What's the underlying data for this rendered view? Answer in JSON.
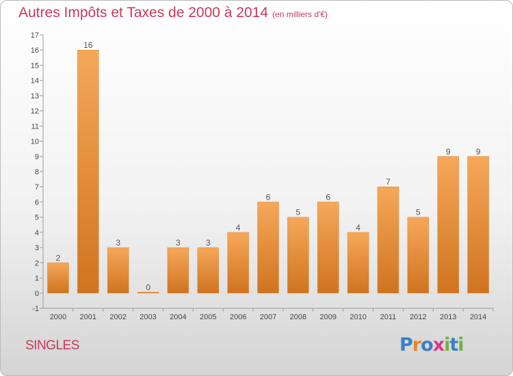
{
  "header": {
    "title": "Autres Impôts et Taxes de 2000 à 2014",
    "unit": "(en milliers d'€)"
  },
  "footer": {
    "commune": "SINGLES",
    "logo_letters": [
      "P",
      "r",
      "o",
      "x",
      "i",
      "t",
      "i"
    ]
  },
  "colors": {
    "title": "#c8385a",
    "bar_light": "#f6a85a",
    "bar_dark": "#cf7420",
    "logo": [
      "#3b7fc4",
      "#e8862a",
      "#3b7fc4",
      "#d63a8c",
      "#6fb43f",
      "#3b7fc4",
      "#6fb43f"
    ]
  },
  "chart_data": {
    "type": "bar",
    "title": "Autres Impôts et Taxes de 2000 à 2014",
    "subtitle": "(en milliers d'€)",
    "categories": [
      "2000",
      "2001",
      "2002",
      "2003",
      "2004",
      "2005",
      "2006",
      "2007",
      "2008",
      "2009",
      "2010",
      "2011",
      "2012",
      "2013",
      "2014"
    ],
    "values": [
      2,
      16,
      3,
      0,
      3,
      3,
      4,
      6,
      5,
      6,
      4,
      7,
      5,
      9,
      9
    ],
    "data_labels": [
      "2",
      "16",
      "3",
      "0",
      "3",
      "3",
      "4",
      "6",
      "5",
      "6",
      "4",
      "7",
      "5",
      "9",
      "9"
    ],
    "y_ticks": [
      "-1",
      "0",
      "1",
      "2",
      "3",
      "4",
      "5",
      "6",
      "7",
      "8",
      "9",
      "10",
      "11",
      "12",
      "13",
      "14",
      "15",
      "16",
      "17"
    ],
    "ylim": [
      -1,
      17
    ],
    "grid": false,
    "legend": "none"
  }
}
